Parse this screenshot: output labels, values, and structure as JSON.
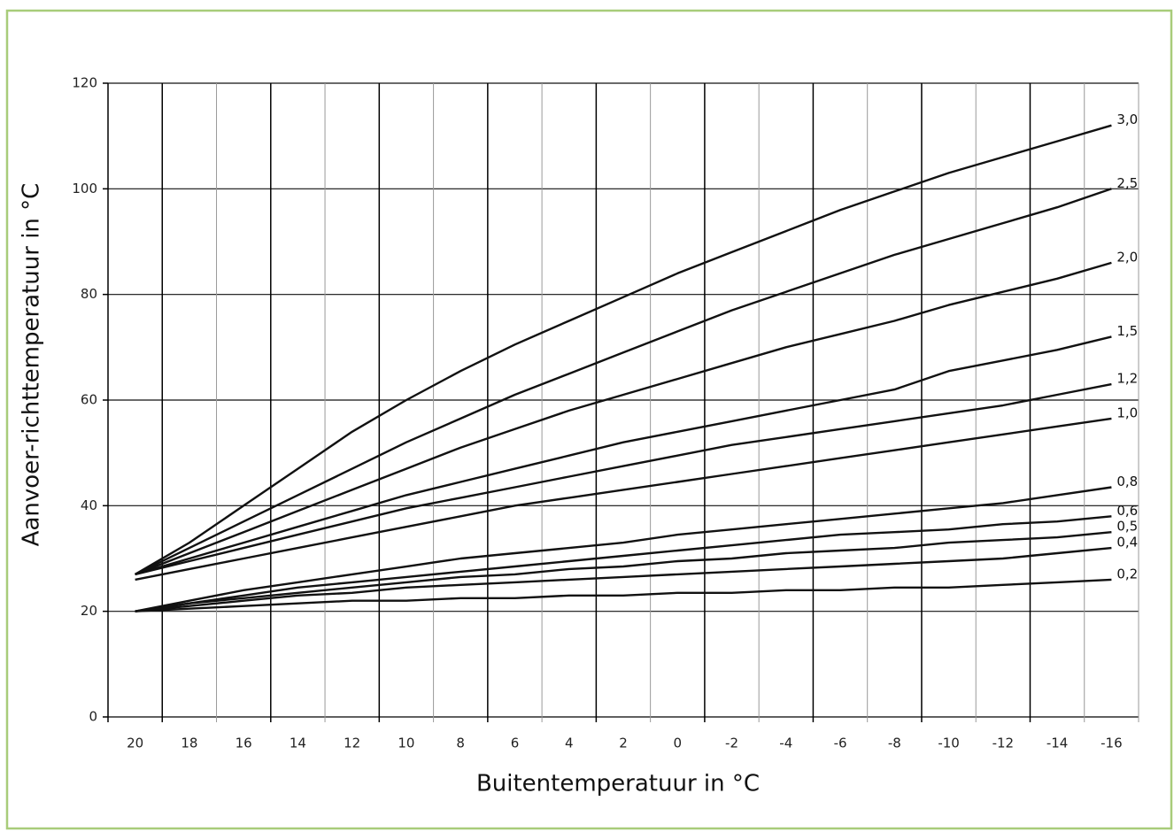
{
  "chart_data": {
    "type": "line",
    "x_label": "Buitentemperatuur in °C",
    "y_label": "Aanvoer-richttemperatuur in °C",
    "x": [
      20,
      18,
      16,
      14,
      12,
      10,
      8,
      6,
      4,
      2,
      0,
      -2,
      -4,
      -6,
      -8,
      -10,
      -12,
      -14,
      -16
    ],
    "xlim": [
      21,
      -17
    ],
    "xticks": [
      20,
      18,
      16,
      14,
      12,
      10,
      8,
      6,
      4,
      2,
      0,
      -2,
      -4,
      -6,
      -8,
      -10,
      -12,
      -14,
      -16
    ],
    "ylim": [
      0,
      120
    ],
    "yticks": [
      0,
      20,
      40,
      60,
      80,
      100,
      120
    ],
    "grid": true,
    "series": [
      {
        "name": "3,0",
        "color": "#111111",
        "values": [
          27,
          33,
          40,
          47,
          54,
          60,
          65.5,
          70.5,
          75,
          79.5,
          84,
          88,
          92,
          96,
          99.5,
          103,
          106,
          109,
          112
        ]
      },
      {
        "name": "2,5",
        "color": "#111111",
        "values": [
          27,
          32,
          37,
          42,
          47,
          52,
          56.5,
          61,
          65,
          69,
          73,
          77,
          80.5,
          84,
          87.5,
          90.5,
          93.5,
          96.5,
          100
        ]
      },
      {
        "name": "2,0",
        "color": "#111111",
        "values": [
          27,
          31,
          35,
          39,
          43,
          47,
          51,
          54.5,
          58,
          61,
          64,
          67,
          70,
          72.5,
          75,
          78,
          80.5,
          83,
          86
        ]
      },
      {
        "name": "1,5",
        "color": "#111111",
        "values": [
          27,
          30,
          33,
          36,
          39,
          42,
          44.5,
          47,
          49.5,
          52,
          54,
          56,
          58,
          60,
          62,
          65.5,
          67.5,
          69.5,
          72
        ]
      },
      {
        "name": "1,2",
        "color": "#111111",
        "values": [
          27,
          29.5,
          32,
          34.5,
          37,
          39.5,
          41.5,
          43.5,
          45.5,
          47.5,
          49.5,
          51.5,
          53,
          54.5,
          56,
          57.5,
          59,
          61,
          63
        ]
      },
      {
        "name": "1,0",
        "color": "#111111",
        "values": [
          26,
          28,
          30,
          32,
          34,
          36,
          38,
          40,
          41.5,
          43,
          44.5,
          46,
          47.5,
          49,
          50.5,
          52,
          53.5,
          55,
          56.5
        ]
      },
      {
        "name": "0,8",
        "color": "#111111",
        "values": [
          20,
          22,
          24,
          25.5,
          27,
          28.5,
          30,
          31,
          32,
          33,
          34.5,
          35.5,
          36.5,
          37.5,
          38.5,
          39.5,
          40.5,
          42,
          43.5
        ]
      },
      {
        "name": "0,6",
        "color": "#111111",
        "values": [
          20,
          21.5,
          23,
          24.5,
          25.5,
          26.5,
          27.5,
          28.5,
          29.5,
          30.5,
          31.5,
          32.5,
          33.5,
          34.5,
          35,
          35.5,
          36.5,
          37,
          38
        ]
      },
      {
        "name": "0,5",
        "color": "#111111",
        "values": [
          20,
          21.5,
          22.5,
          23.5,
          24.5,
          25.5,
          26.5,
          27,
          28,
          28.5,
          29.5,
          30,
          31,
          31.5,
          32,
          33,
          33.5,
          34,
          35
        ]
      },
      {
        "name": "0,4",
        "color": "#111111",
        "values": [
          20,
          21,
          22,
          23,
          23.5,
          24.5,
          25,
          25.5,
          26,
          26.5,
          27,
          27.5,
          28,
          28.5,
          29,
          29.5,
          30,
          31,
          32
        ]
      },
      {
        "name": "0,2",
        "color": "#111111",
        "values": [
          20,
          20.5,
          21,
          21.5,
          22,
          22,
          22.5,
          22.5,
          23,
          23,
          23.5,
          23.5,
          24,
          24,
          24.5,
          24.5,
          25,
          25.5,
          26
        ]
      }
    ]
  }
}
